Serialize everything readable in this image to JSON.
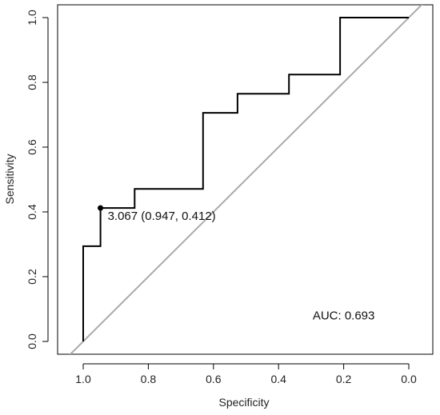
{
  "chart_data": {
    "type": "line",
    "title": "",
    "xlabel": "Specificity",
    "ylabel": "Sensitivity",
    "xlim": [
      1.05,
      -0.05
    ],
    "ylim": [
      -0.02,
      1.05
    ],
    "x_ticks": [
      1.0,
      0.8,
      0.6,
      0.4,
      0.2,
      0.0
    ],
    "x_tick_labels": [
      "1.0",
      "0.8",
      "0.6",
      "0.4",
      "0.2",
      "0.0"
    ],
    "y_ticks": [
      0.0,
      0.2,
      0.4,
      0.6,
      0.8,
      1.0
    ],
    "y_tick_labels": [
      "0.0",
      "0.2",
      "0.4",
      "0.6",
      "0.8",
      "1.0"
    ],
    "grid": false,
    "series": [
      {
        "x": [
          1.0,
          1.0,
          0.947,
          0.947,
          0.842,
          0.842,
          0.632,
          0.632,
          0.526,
          0.526,
          0.368,
          0.368,
          0.211,
          0.211,
          0.0
        ],
        "y": [
          0.0,
          0.294,
          0.294,
          0.412,
          0.412,
          0.471,
          0.471,
          0.706,
          0.706,
          0.765,
          0.765,
          0.824,
          0.824,
          1.0,
          1.0
        ],
        "color": "#000000"
      }
    ],
    "reference_line": {
      "x": [
        1.0,
        0.0
      ],
      "y": [
        0.0,
        1.0
      ],
      "color": "#aaaaaa"
    },
    "threshold_point": {
      "x": 0.947,
      "y": 0.412,
      "label": "3.067 (0.947, 0.412)"
    },
    "annotations": [
      {
        "text": "AUC: 0.693",
        "x": 0.2,
        "y": 0.08
      }
    ],
    "colors": {
      "roc": "#000000",
      "diagonal": "#aaaaaa",
      "axes": "#000000"
    }
  }
}
